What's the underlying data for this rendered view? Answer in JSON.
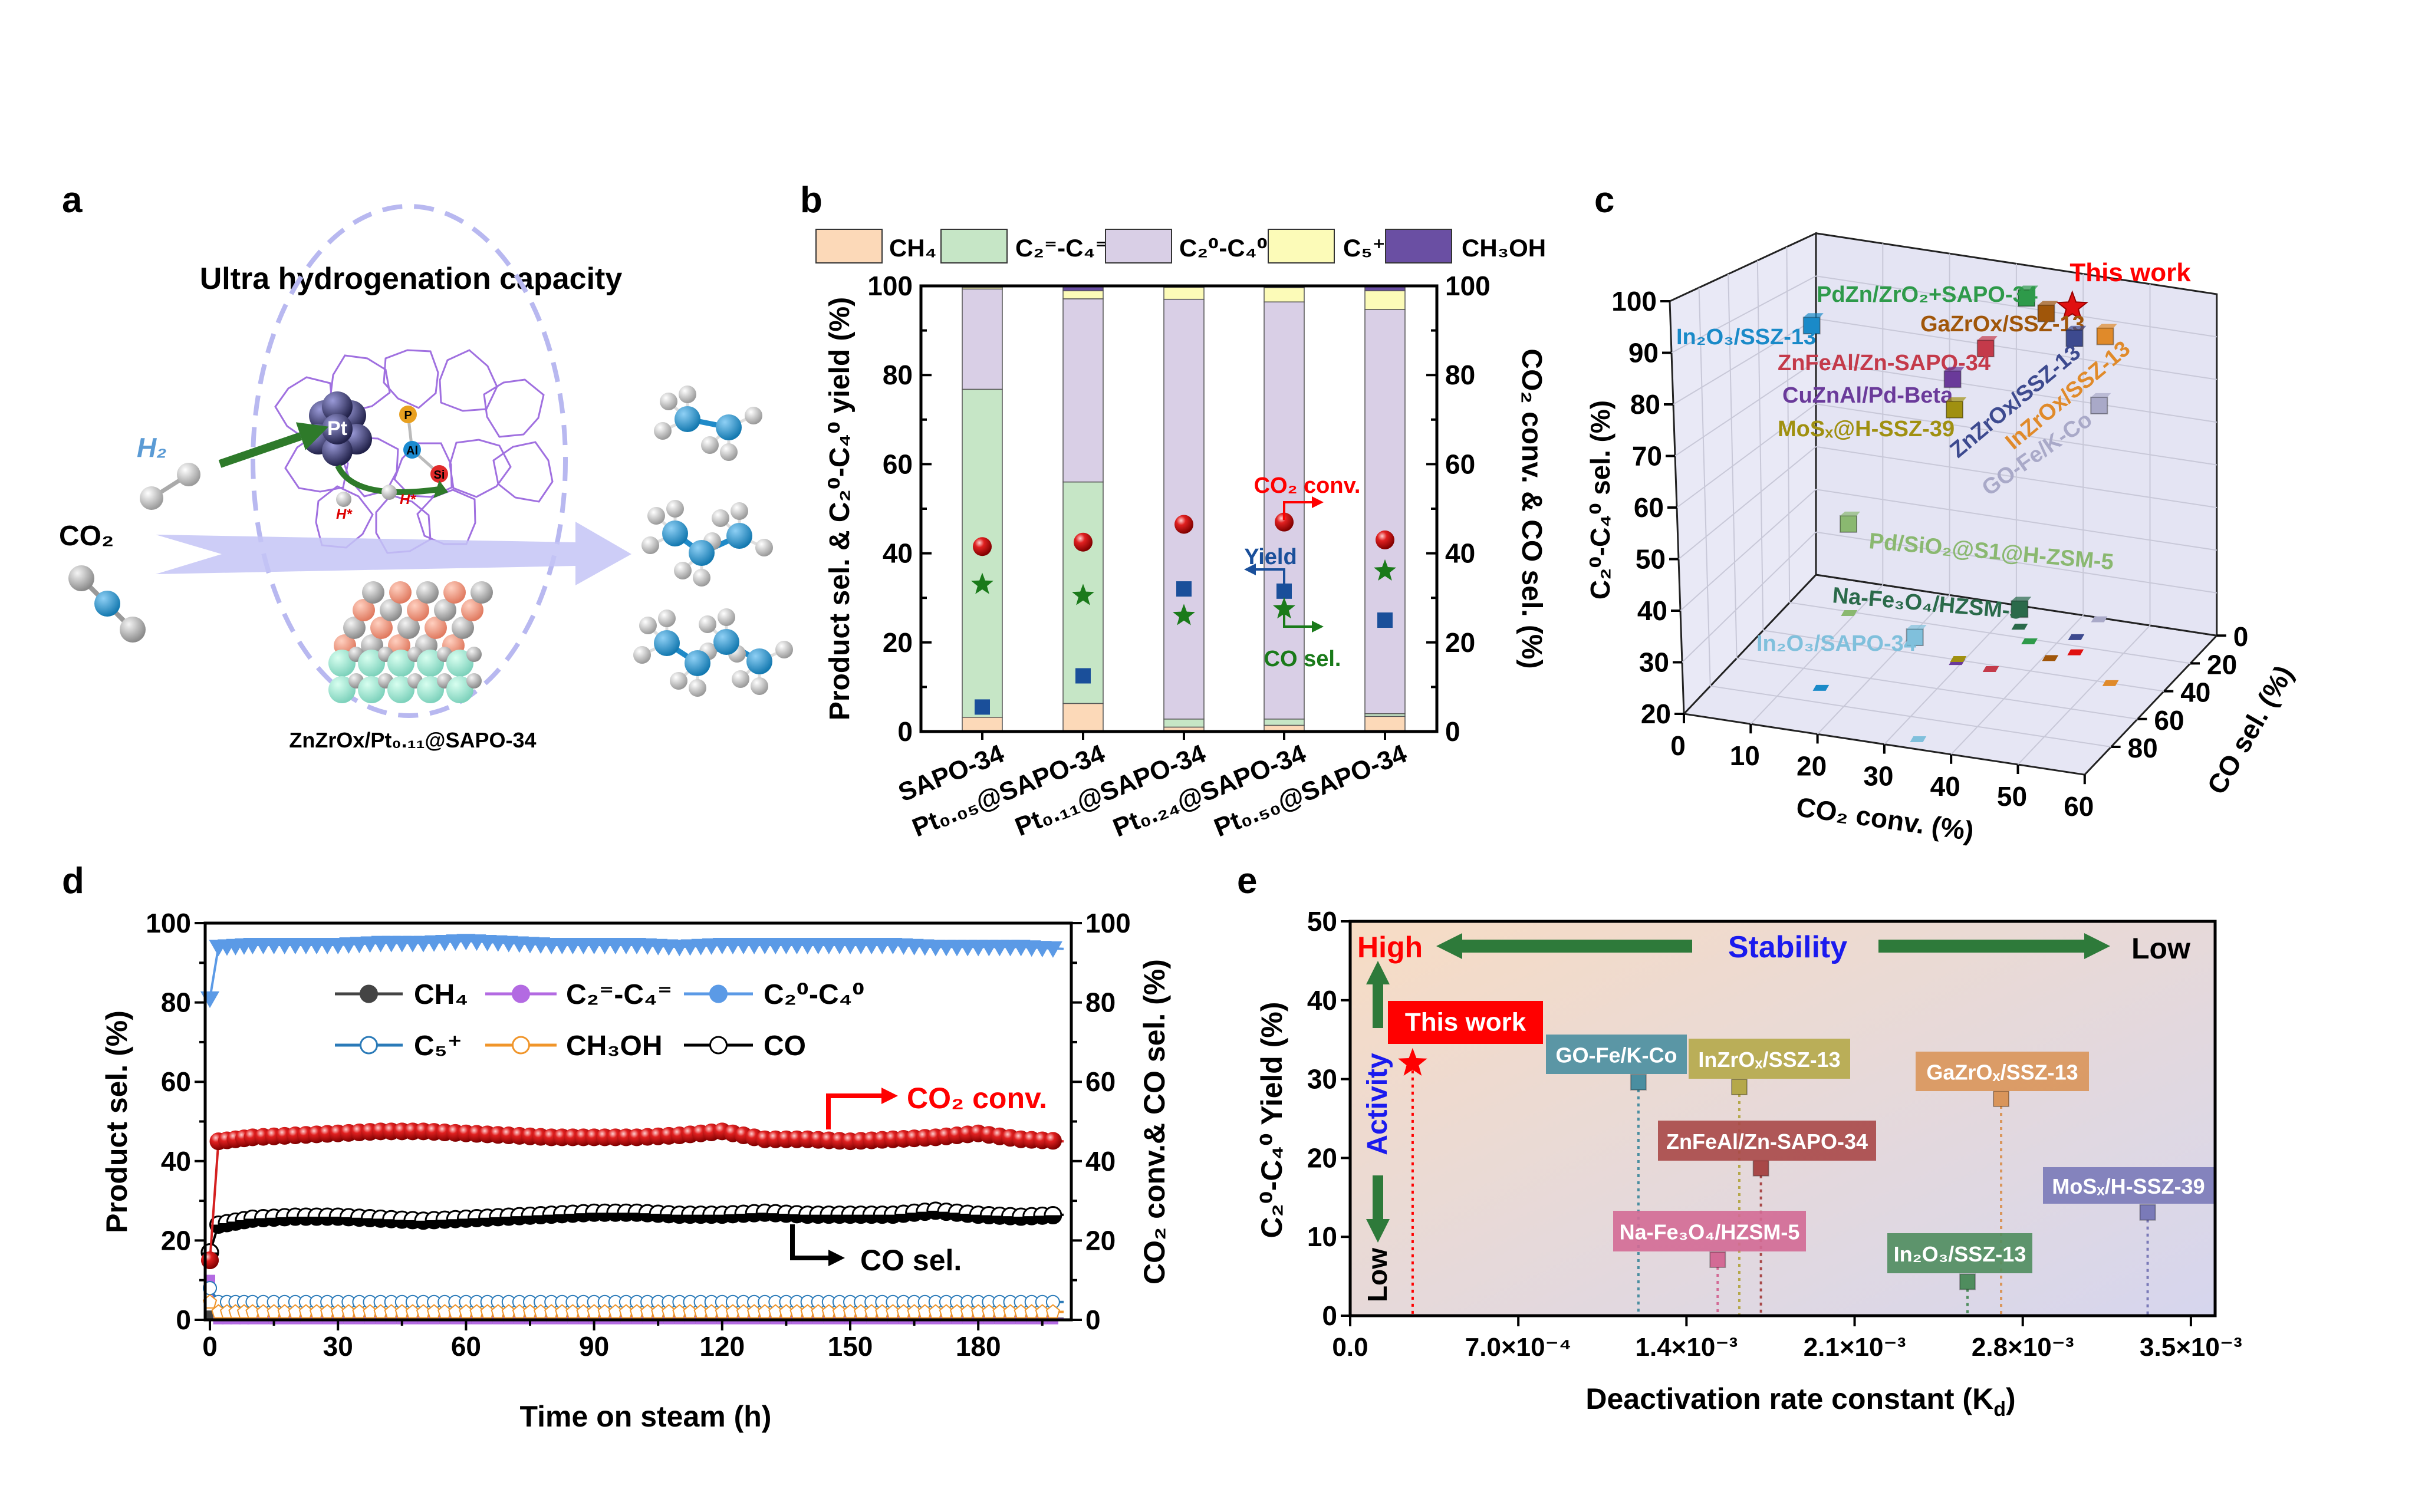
{
  "panel_labels": [
    "a",
    "b",
    "c",
    "d",
    "e"
  ],
  "panel_a": {
    "title": "Ultra hydrogenation capacity",
    "h2": "H₂",
    "co2": "CO₂",
    "catalyst": "ZnZrOx/Pt₀.₁₁@SAPO-34",
    "atoms": {
      "pt": "Pt",
      "p": "P",
      "al": "Al",
      "si": "Si"
    },
    "h_star": "H*"
  },
  "chart_data": [
    {
      "panel": "b",
      "type": "bar",
      "stacked": true,
      "categories": [
        "SAPO-34",
        "Pt₀.₀₅@SAPO-34",
        "Pt₀.₁₁@SAPO-34",
        "Pt₀.₂₄@SAPO-34",
        "Pt₀.₅₀@SAPO-34"
      ],
      "series": [
        {
          "name": "CH₄",
          "color": "#fcd9b8",
          "values": [
            3.2,
            6.3,
            1.0,
            1.4,
            3.4
          ]
        },
        {
          "name": "C₂⁼-C₄⁼",
          "color": "#c6e6c6",
          "values": [
            73.6,
            49.7,
            1.8,
            1.4,
            0.6
          ]
        },
        {
          "name": "C₂⁰-C₄⁰",
          "color": "#d9cfe6",
          "values": [
            22.5,
            41.1,
            94.2,
            93.6,
            90.7
          ]
        },
        {
          "name": "C₅⁺",
          "color": "#fcfbb8",
          "values": [
            0.4,
            1.8,
            2.7,
            3.2,
            4.2
          ]
        },
        {
          "name": "CH₃OH",
          "color": "#6a4fa3",
          "values": [
            0.3,
            1.1,
            0.3,
            0.4,
            1.1
          ]
        }
      ],
      "markers": [
        {
          "name": "CO₂ conv.",
          "axis": "right",
          "shape": "sphere",
          "color": "#d42020",
          "values": [
            41.5,
            42.5,
            46.5,
            47,
            43
          ]
        },
        {
          "name": "Yield",
          "axis": "left",
          "shape": "square",
          "color": "#1a4f9a",
          "values": [
            5.5,
            12.5,
            32,
            31.5,
            25
          ]
        },
        {
          "name": "CO sel.",
          "axis": "right",
          "shape": "star",
          "color": "#1a7a1a",
          "values": [
            33,
            30.5,
            26,
            27.5,
            36
          ]
        }
      ],
      "ylabel": "Product sel. & C₂⁰-C₄⁰ yield (%)",
      "ylabel_right": "CO₂ conv. & CO sel. (%)",
      "ylim": [
        0,
        100
      ],
      "yticks": [
        "0",
        "20",
        "40",
        "60",
        "80",
        "100"
      ],
      "legend_position": "top"
    },
    {
      "panel": "c",
      "type": "scatter3d",
      "xlabel": "CO₂ conv. (%)",
      "ylabel": "CO sel. (%)",
      "zlabel": "C₂⁰-C₄⁰ sel. (%)",
      "xlim": [
        0,
        60
      ],
      "ylim": [
        0,
        100
      ],
      "zlim": [
        20,
        100
      ],
      "xticks": [
        "0",
        "10",
        "20",
        "30",
        "40",
        "50",
        "60"
      ],
      "yticks": [
        "0",
        "20",
        "40",
        "60",
        "80"
      ],
      "zticks": [
        "20",
        "30",
        "40",
        "50",
        "60",
        "70",
        "80",
        "90",
        "100"
      ],
      "points": [
        {
          "label": "This work",
          "x": 43.6,
          "y": 24,
          "z": 97,
          "color": "#e01010",
          "shape": "star"
        },
        {
          "label": "PdZn/ZrO₂+SAPO-34",
          "x": 36.2,
          "y": 21.5,
          "z": 97,
          "color": "#2e9a4a"
        },
        {
          "label": "GaZrOx/SSZ-13",
          "x": 41,
          "y": 30,
          "z": 96,
          "color": "#a0560a"
        },
        {
          "label": "ZnZrOx/SSZ-13",
          "x": 41.8,
          "y": 14.4,
          "z": 88,
          "color": "#3d4a8f"
        },
        {
          "label": "InZrOx/SSZ-13",
          "x": 52,
          "y": 40,
          "z": 95,
          "color": "#e08a2a"
        },
        {
          "label": "GO-Fe/K-Co",
          "x": 42.6,
          "y": 1,
          "z": 70,
          "color": "#a9a9c8"
        },
        {
          "label": "ZnFeAl/Zn-SAPO-34",
          "x": 34.6,
          "y": 42.6,
          "z": 89,
          "color": "#c43a4a"
        },
        {
          "label": "CuZnAl/Pd-Beta",
          "x": 29.3,
          "y": 41.4,
          "z": 81,
          "color": "#6a3a9a"
        },
        {
          "label": "MoSₓ@H-SSZ-39",
          "x": 29.1,
          "y": 39.4,
          "z": 74,
          "color": "#a09010"
        },
        {
          "label": "Pd/SiO₂@S1@H-ZSM-5",
          "x": 9.1,
          "y": 20.9,
          "z": 40,
          "color": "#8ab870"
        },
        {
          "label": "Na-Fe₃O₄/HZSM-5",
          "x": 33.1,
          "y": 13.2,
          "z": 24,
          "color": "#2a6a4a"
        },
        {
          "label": "In₂O₃/SSZ-13",
          "x": 14.7,
          "y": 70.6,
          "z": 94,
          "color": "#1a8ac8"
        },
        {
          "label": "In₂O₃/SAPO-34",
          "x": 33.8,
          "y": 93.6,
          "z": 40,
          "color": "#80c0dc"
        }
      ]
    },
    {
      "panel": "d",
      "type": "line",
      "xlabel": "Time on steam (h)",
      "ylabel": "Product sel. (%)",
      "ylabel_right": "CO₂ conv.& CO sel. (%)",
      "xlim": [
        0,
        200
      ],
      "ylim": [
        0,
        100
      ],
      "xticks": [
        "0",
        "30",
        "60",
        "90",
        "120",
        "150",
        "180"
      ],
      "yticks": [
        "0",
        "20",
        "40",
        "60",
        "80",
        "100"
      ],
      "x": [
        0,
        2,
        10,
        20,
        30,
        40,
        50,
        60,
        70,
        80,
        90,
        100,
        110,
        120,
        130,
        140,
        150,
        160,
        170,
        180,
        190,
        200
      ],
      "series": [
        {
          "name": "CH₄",
          "color": "#444444",
          "marker": "square",
          "values": [
            1,
            0.3,
            0.3,
            0.3,
            0.3,
            0.3,
            0.3,
            0.3,
            0.3,
            0.3,
            0.3,
            0.3,
            0.3,
            0.3,
            0.3,
            0.3,
            0.3,
            0.3,
            0.3,
            0.3,
            0.3,
            0.3
          ]
        },
        {
          "name": "C₂⁼-C₄⁼",
          "color": "#b36ae2",
          "marker": "half-square",
          "values": [
            10,
            0.2,
            0.2,
            0.2,
            0.2,
            0.2,
            0.2,
            0.2,
            0.2,
            0.2,
            0.2,
            0.2,
            0.2,
            0.2,
            0.2,
            0.2,
            0.2,
            0.2,
            0.2,
            0.2,
            0.2,
            0.2
          ]
        },
        {
          "name": "C₂⁰-C₄⁰",
          "color": "#5b9ae6",
          "marker": "triangle-down",
          "values": [
            81,
            94,
            94.5,
            94.5,
            94.5,
            95,
            95,
            95.5,
            95,
            94.5,
            94.5,
            94.5,
            94,
            94.5,
            94.5,
            94.5,
            94.5,
            94.5,
            94,
            94,
            94,
            93.5
          ]
        },
        {
          "name": "C₅⁺",
          "color": "#2a7ab8",
          "marker": "open-circle",
          "values": [
            8,
            4.5,
            4.5,
            4.5,
            4.5,
            4.5,
            4.5,
            4.5,
            4.5,
            4.5,
            4.5,
            4.5,
            4.5,
            4.5,
            4.5,
            4.5,
            4.5,
            4.5,
            4.5,
            4.5,
            4.5,
            4.5
          ]
        },
        {
          "name": "CH₃OH",
          "color": "#f0952a",
          "marker": "pentagon",
          "values": [
            4.5,
            2,
            2,
            2,
            2,
            2,
            2,
            2,
            2,
            2,
            2,
            2,
            2,
            2,
            2,
            2,
            2,
            2,
            2,
            2,
            2,
            2
          ]
        },
        {
          "name": "CO",
          "color": "#000000",
          "marker": "half-circle",
          "axis": "right",
          "values": [
            17,
            24,
            25.5,
            26,
            26,
            25.5,
            25,
            25.5,
            26,
            26.5,
            27,
            27,
            26.5,
            26.5,
            27,
            26.5,
            26.5,
            26.5,
            27.5,
            26.5,
            26,
            26.5
          ]
        },
        {
          "name": "CO₂ conv.",
          "color": "#d42020",
          "marker": "sphere",
          "axis": "right",
          "values": [
            15,
            45,
            46,
            46.5,
            47,
            47.5,
            47.5,
            47,
            46.5,
            46,
            46,
            46,
            46.5,
            47.5,
            45.5,
            45.5,
            45,
            45.5,
            46,
            47,
            45.5,
            45
          ]
        }
      ],
      "annotations": {
        "co2_conv": "CO₂ conv.",
        "co_sel": "CO sel."
      },
      "legend_position": "upper-left"
    },
    {
      "panel": "e",
      "type": "scatter",
      "xlabel": "Deactivation rate constant (K_d)",
      "xlabel_main": "Deactivation rate constant (K",
      "xlabel_sub": "d",
      "xlabel_end": ")",
      "ylabel": "C₂⁰-C₄⁰ Yield (%)",
      "xlim": [
        0,
        0.0036
      ],
      "ylim": [
        0,
        50
      ],
      "xticks": [
        0,
        0.0007,
        0.0014,
        0.0021,
        0.0028,
        0.0035
      ],
      "xtick_labels": [
        "0.0",
        "7.0×10⁻⁴",
        "1.4×10⁻³",
        "2.1×10⁻³",
        "2.8×10⁻³",
        "3.5×10⁻³"
      ],
      "yticks": [
        "0",
        "10",
        "20",
        "30",
        "40",
        "50"
      ],
      "points": [
        {
          "label": "This work",
          "x": 0.00026,
          "y": 32,
          "color": "#ff0000",
          "shape": "star"
        },
        {
          "label": "GO-Fe/K-Co",
          "x": 0.0012,
          "y": 29.6,
          "color": "#4a8ea0"
        },
        {
          "label": "InZrOₓ/SSZ-13",
          "x": 0.00162,
          "y": 29,
          "color": "#b5a84a"
        },
        {
          "label": "GaZrOₓ/SSZ-13",
          "x": 0.00271,
          "y": 27.5,
          "color": "#d9955a"
        },
        {
          "label": "ZnFeAl/Zn-SAPO-34",
          "x": 0.00171,
          "y": 18.7,
          "color": "#a84848"
        },
        {
          "label": "MoSₓ/H-SSZ-39",
          "x": 0.00332,
          "y": 13.1,
          "color": "#7a7ab8"
        },
        {
          "label": "Na-Fe₃O₄/HZSM-5",
          "x": 0.00153,
          "y": 7.1,
          "color": "#d36a95"
        },
        {
          "label": "In₂O₃/SSZ-13",
          "x": 0.00257,
          "y": 4.3,
          "color": "#4f8d5e"
        }
      ],
      "annotations": {
        "high": "High",
        "stability": "Stability",
        "low_stability": "Low",
        "activity": "Activity",
        "low_activity": "Low"
      }
    }
  ]
}
